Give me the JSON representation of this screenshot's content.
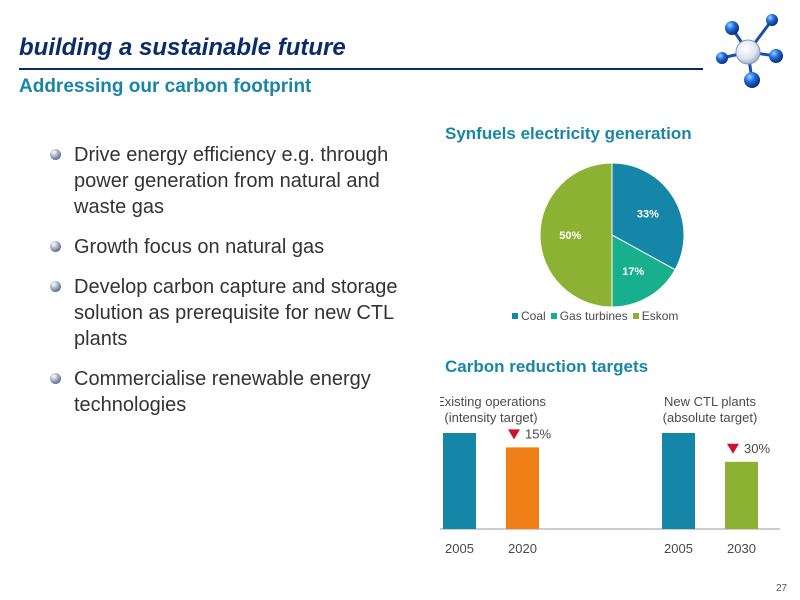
{
  "header": {
    "title": "building a sustainable future",
    "subtitle": "Addressing our carbon footprint"
  },
  "bullets": [
    "Drive energy efficiency e.g. through power generation from natural and waste gas",
    "Growth focus on natural gas",
    "Develop carbon capture and storage solution as prerequisite for new CTL plants",
    "Commercialise renewable energy technologies"
  ],
  "pie_section": {
    "title": "Synfuels electricity generation"
  },
  "bar_section": {
    "title": "Carbon reduction targets"
  },
  "chart_data": [
    {
      "type": "pie",
      "title": "Synfuels electricity generation",
      "slices": [
        {
          "name": "Coal",
          "value": 33,
          "label": "33%",
          "color": "#1585a8"
        },
        {
          "name": "Gas turbines",
          "value": 17,
          "label": "17%",
          "color": "#18b08c"
        },
        {
          "name": "Eskom",
          "value": 50,
          "label": "50%",
          "color": "#8db233"
        }
      ],
      "legend": "bottom"
    },
    {
      "type": "bar",
      "title": "Carbon reduction targets",
      "groups": [
        {
          "name": "Existing operations (intensity target)",
          "lines": [
            "Existing operations",
            "(intensity target)"
          ],
          "reduction_label": "15%",
          "bars": [
            {
              "category": "2005",
              "value": 100,
              "color": "#1585a8"
            },
            {
              "category": "2020",
              "value": 85,
              "color": "#f07f18"
            }
          ]
        },
        {
          "name": "New CTL plants (absolute target)",
          "lines": [
            "New CTL plants",
            "(absolute target)"
          ],
          "reduction_label": "30%",
          "bars": [
            {
              "category": "2005",
              "value": 100,
              "color": "#1585a8"
            },
            {
              "category": "2030",
              "value": 70,
              "color": "#8db233"
            }
          ]
        }
      ],
      "marker_color": "#d0102c",
      "ylim": [
        0,
        100
      ]
    }
  ],
  "footer": {
    "page_number": "27"
  },
  "colors": {
    "title": "#0b2c6b",
    "accent": "#1a86a6",
    "text": "#333333"
  }
}
